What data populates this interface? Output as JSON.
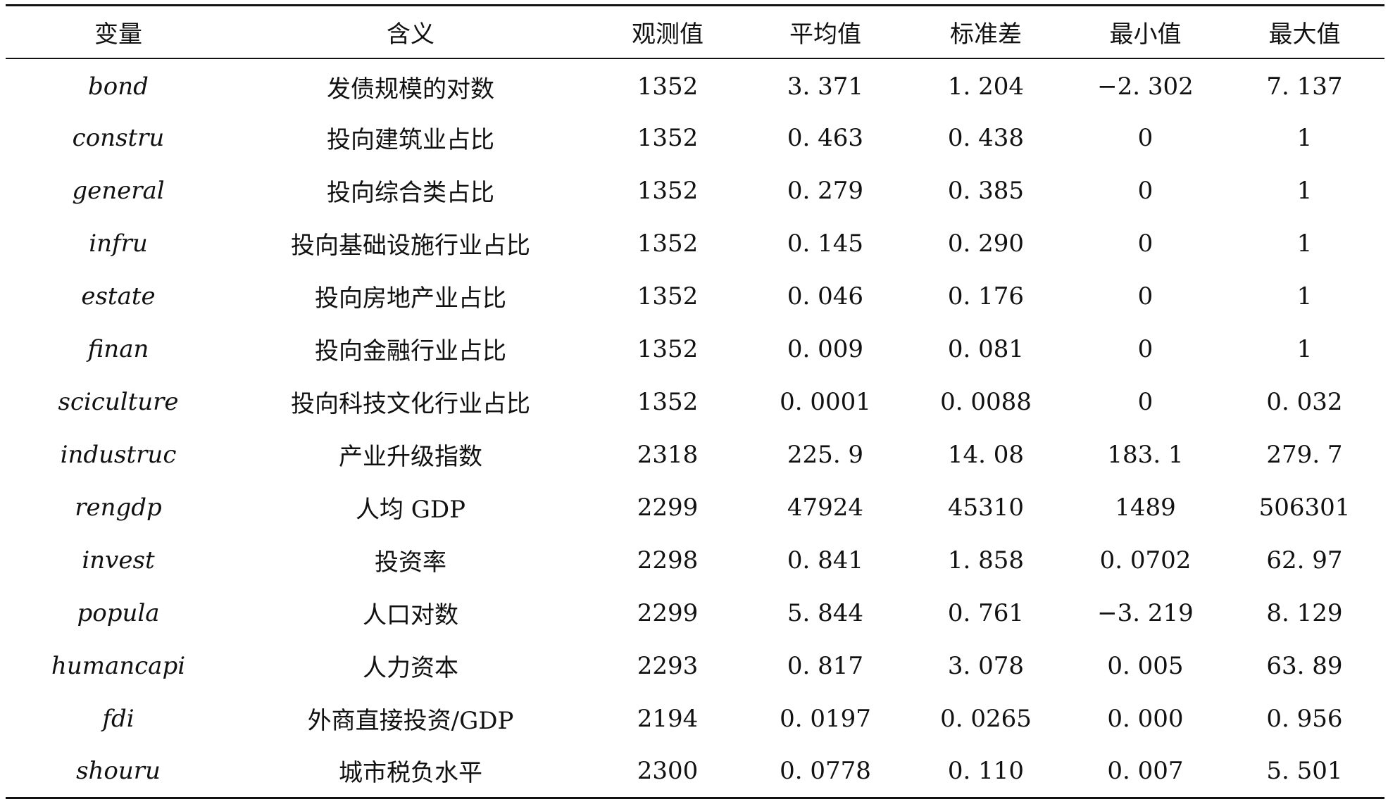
{
  "table": {
    "headers": [
      "变量",
      "含义",
      "观测值",
      "平均值",
      "标准差",
      "最小值",
      "最大值"
    ],
    "rows": [
      [
        "bond",
        "发债规模的对数",
        "1352",
        "3. 371",
        "1. 204",
        "−2. 302",
        "7. 137"
      ],
      [
        "constru",
        "投向建筑业占比",
        "1352",
        "0. 463",
        "0. 438",
        "0",
        "1"
      ],
      [
        "general",
        "投向综合类占比",
        "1352",
        "0. 279",
        "0. 385",
        "0",
        "1"
      ],
      [
        "infru",
        "投向基础设施行业占比",
        "1352",
        "0. 145",
        "0. 290",
        "0",
        "1"
      ],
      [
        "estate",
        "投向房地产业占比",
        "1352",
        "0. 046",
        "0. 176",
        "0",
        "1"
      ],
      [
        "finan",
        "投向金融行业占比",
        "1352",
        "0. 009",
        "0. 081",
        "0",
        "1"
      ],
      [
        "sciculture",
        "投向科技文化行业占比",
        "1352",
        "0. 0001",
        "0. 0088",
        "0",
        "0. 032"
      ],
      [
        "industruc",
        "产业升级指数",
        "2318",
        "225. 9",
        "14. 08",
        "183. 1",
        "279. 7"
      ],
      [
        "rengdp",
        "人均 GDP",
        "2299",
        "47924",
        "45310",
        "1489",
        "506301"
      ],
      [
        "invest",
        "投资率",
        "2298",
        "0. 841",
        "1. 858",
        "0. 0702",
        "62. 97"
      ],
      [
        "popula",
        "人口对数",
        "2299",
        "5. 844",
        "0. 761",
        "−3. 219",
        "8. 129"
      ],
      [
        "humancapi",
        "人力资本",
        "2293",
        "0. 817",
        "3. 078",
        "0. 005",
        "63. 89"
      ],
      [
        "fdi",
        "外商直接投资/GDP",
        "2194",
        "0. 0197",
        "0. 0265",
        "0. 000",
        "0. 956"
      ],
      [
        "shouru",
        "城市税负水平",
        "2300",
        "0. 0778",
        "0. 110",
        "0. 007",
        "5. 501"
      ]
    ]
  }
}
